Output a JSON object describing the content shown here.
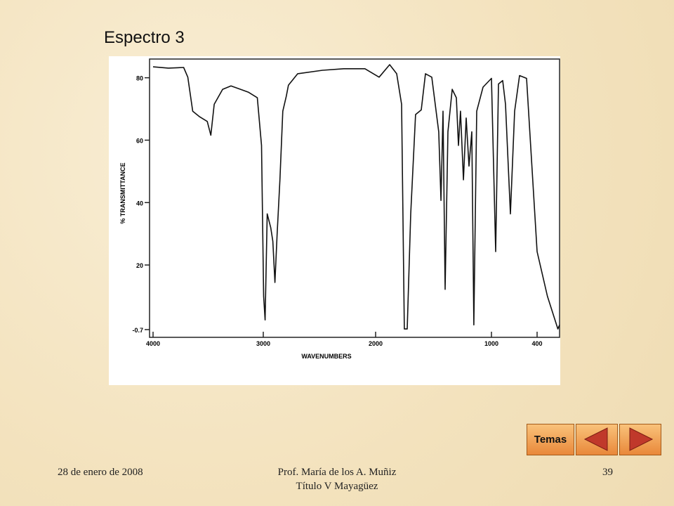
{
  "slide": {
    "title": "Espectro 3",
    "date": "28 de enero de 2008",
    "author": "Prof. María de los A. Muñiz",
    "program": "Título V Mayagüez",
    "page": "39",
    "button": "Temas"
  },
  "chart_data": {
    "type": "line",
    "ylabel": "% TRANSMITTANCE",
    "xlabel": "WAVENUMBERS",
    "color": "#111111",
    "xlim": [
      4000,
      200
    ],
    "xticks": [
      4000,
      3000,
      2000,
      1000,
      400
    ],
    "ylim": [
      -0.7,
      86
    ],
    "yticks": [
      80,
      60,
      40,
      20,
      -0.7
    ],
    "x": [
      4000,
      3861,
      3722,
      3685,
      3640,
      3577,
      3508,
      3476,
      3445,
      3369,
      3293,
      3136,
      3054,
      3016,
      2997,
      2984,
      2965,
      2934,
      2915,
      2896,
      2877,
      2852,
      2826,
      2795,
      2776,
      2694,
      2473,
      2284,
      2095,
      1970,
      1879,
      1818,
      1776,
      1752,
      1727,
      1697,
      1655,
      1606,
      1570,
      1515,
      1455,
      1436,
      1418,
      1400,
      1376,
      1339,
      1303,
      1285,
      1267,
      1242,
      1218,
      1194,
      1170,
      1152,
      1127,
      1073,
      1000,
      945,
      908,
      852,
      815,
      751,
      695,
      631,
      538,
      400,
      308,
      215,
      200
    ],
    "values": [
      83.5,
      83.1,
      83.3,
      80.2,
      69.3,
      67.5,
      66.0,
      61.6,
      71.5,
      76.3,
      77.4,
      75.4,
      73.6,
      58.3,
      10.0,
      2.4,
      36.4,
      32.0,
      27.6,
      14.4,
      29.8,
      47.3,
      69.3,
      74.1,
      77.6,
      81.3,
      82.4,
      82.9,
      82.9,
      80.2,
      84.2,
      81.3,
      71.5,
      -0.5,
      -0.5,
      36.4,
      68.2,
      69.7,
      81.3,
      80.2,
      62.7,
      40.7,
      69.3,
      12.2,
      62.7,
      76.3,
      73.6,
      58.3,
      69.3,
      47.3,
      67.1,
      51.7,
      62.7,
      0.8,
      69.3,
      77.0,
      79.8,
      24.3,
      78.0,
      79.1,
      71.5,
      36.4,
      69.3,
      80.7,
      79.8,
      24.3,
      10.0,
      -0.5,
      0.8
    ]
  }
}
